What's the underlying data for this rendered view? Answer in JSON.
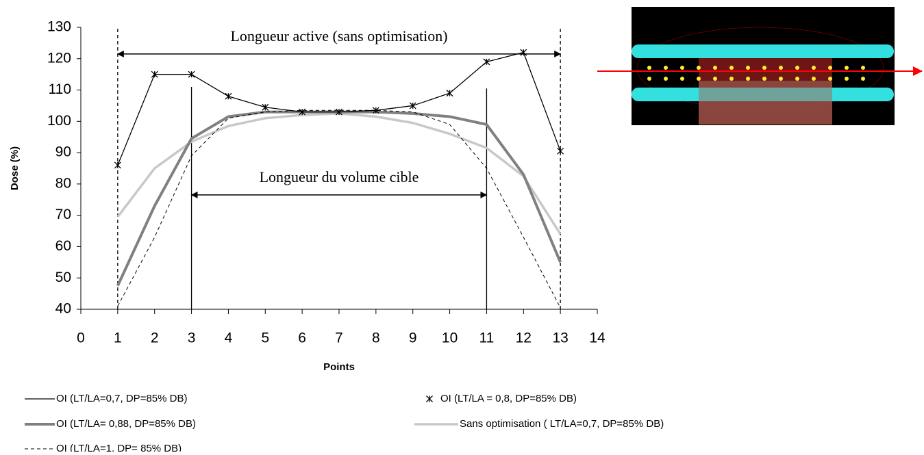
{
  "chart_data": {
    "type": "line",
    "xlabel": "Points",
    "ylabel": "Dose (%)",
    "x": [
      1,
      2,
      3,
      4,
      5,
      6,
      7,
      8,
      9,
      10,
      11,
      12,
      13
    ],
    "xlim": [
      0,
      14
    ],
    "xticks": [
      0,
      1,
      2,
      3,
      4,
      5,
      6,
      7,
      8,
      9,
      10,
      11,
      12,
      13,
      14
    ],
    "ylim": [
      40,
      130
    ],
    "yticks": [
      40,
      50,
      60,
      70,
      80,
      90,
      100,
      110,
      120,
      130
    ],
    "series": [
      {
        "name": "OI (LT/LA=0,7, DP=85% DB)",
        "color": "#000000",
        "line_width": 1.3,
        "dash": "none",
        "marker": "none",
        "values": [
          86,
          115,
          115,
          108,
          104.5,
          103,
          103,
          103.5,
          105,
          109,
          119,
          122,
          90.5
        ]
      },
      {
        "name": "OI (LT/LA = 0,8, DP=85% DB)",
        "color": "#000000",
        "line_width": 0,
        "dash": "none",
        "marker": "star",
        "values": [
          86,
          115,
          115,
          108,
          104.5,
          103,
          103,
          103.5,
          105,
          109,
          119,
          122,
          90.5
        ]
      },
      {
        "name": "OI (LT/LA= 0,88, DP=85% DB)",
        "color": "#808080",
        "line_width": 4,
        "dash": "none",
        "marker": "none",
        "values": [
          47.5,
          73,
          94.5,
          101.5,
          103,
          103,
          103,
          103,
          102.5,
          101.5,
          99,
          83,
          55
        ]
      },
      {
        "name": "Sans optimisation ( LT/LA=0,7, DP=85% DB)",
        "color": "#c8c8c8",
        "line_width": 3.5,
        "dash": "none",
        "marker": "none",
        "values": [
          69.5,
          85,
          93.5,
          98.5,
          101,
          102,
          102.5,
          101.5,
          99.5,
          96,
          91.5,
          82.5,
          64
        ]
      },
      {
        "name": "OI (LT/LA=1, DP= 85% DB)",
        "color": "#000000",
        "line_width": 1,
        "dash": "5,4",
        "marker": "none",
        "values": [
          41,
          63,
          89,
          101,
          103,
          103.5,
          103.5,
          103.5,
          103,
          99,
          85,
          63,
          40.5
        ]
      }
    ],
    "vlines": [
      {
        "x": 1,
        "from": 40,
        "to": 130,
        "dash": "5,4"
      },
      {
        "x": 13,
        "from": 40,
        "to": 130,
        "dash": "5,4"
      },
      {
        "x": 3,
        "from": 40,
        "to": 111,
        "dash": "none"
      },
      {
        "x": 11,
        "from": 40,
        "to": 110.5,
        "dash": "none"
      }
    ],
    "annotations": [
      {
        "text": "Longueur active (sans optimisation)",
        "x_start": 1,
        "x_end": 13,
        "y": 121.5
      },
      {
        "text": "Longueur du volume cible",
        "x_start": 3,
        "x_end": 11,
        "y": 76.5
      }
    ]
  }
}
